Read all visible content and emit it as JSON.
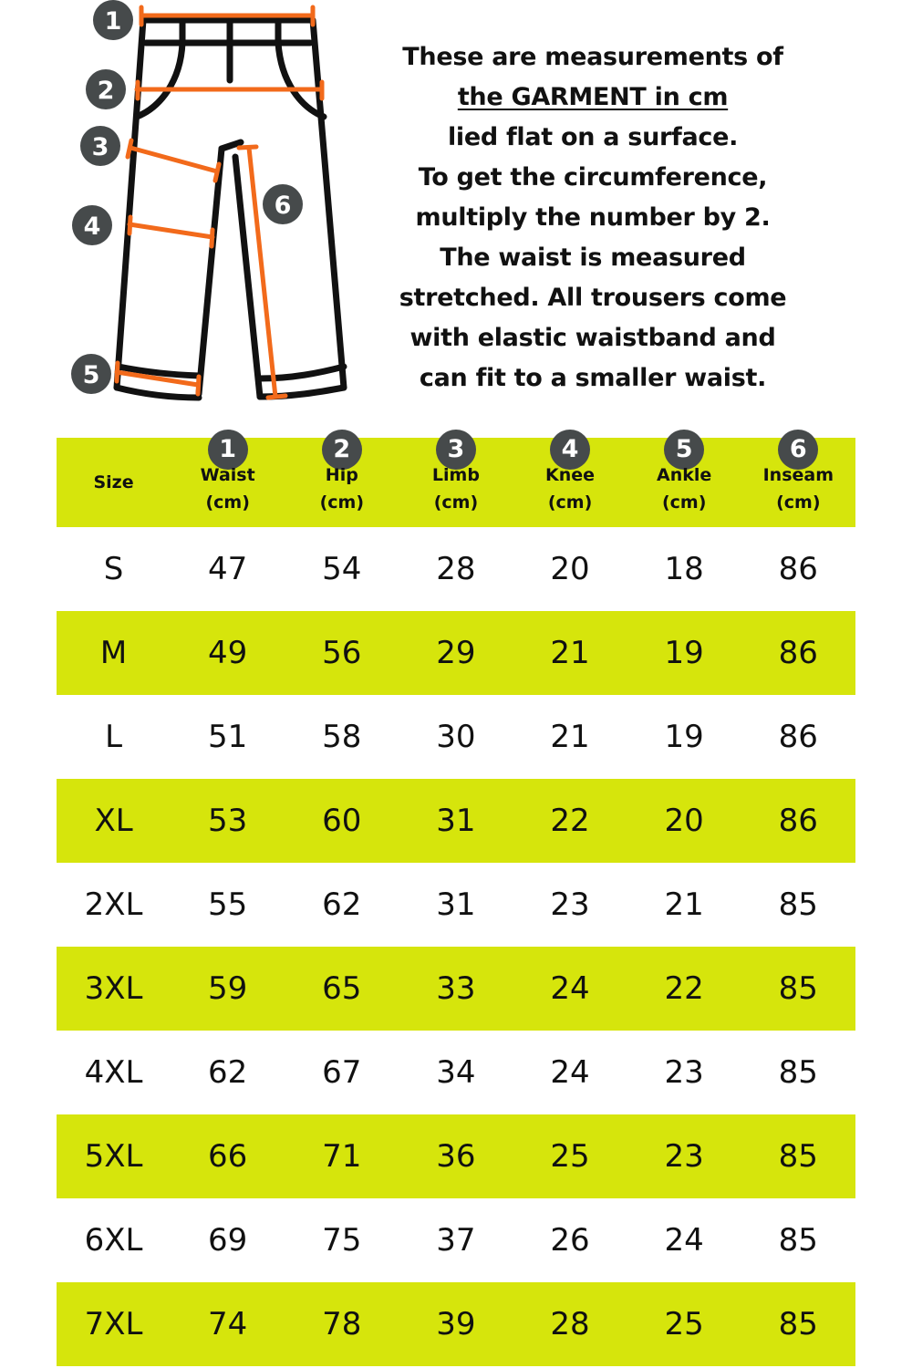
{
  "colors": {
    "accent": "#d6e50c",
    "badge": "#464a4b",
    "measure_line": "#f26a1b",
    "outline": "#111111"
  },
  "diagram": {
    "badges": [
      "1",
      "2",
      "3",
      "4",
      "5",
      "6"
    ]
  },
  "note": {
    "lines": [
      "These are measurements of",
      "the GARMENT in cm",
      "lied flat on a surface.",
      "To get the circumference,",
      "multiply the number by 2.",
      "The waist is measured",
      "stretched. All trousers come",
      "with elastic waistband and",
      "can fit to a smaller waist."
    ]
  },
  "table": {
    "headers": [
      {
        "badge": "",
        "label": "Size",
        "unit": ""
      },
      {
        "badge": "1",
        "label": "Waist",
        "unit": "(cm)"
      },
      {
        "badge": "2",
        "label": "Hip",
        "unit": "(cm)"
      },
      {
        "badge": "3",
        "label": "Limb",
        "unit": "(cm)"
      },
      {
        "badge": "4",
        "label": "Knee",
        "unit": "(cm)"
      },
      {
        "badge": "5",
        "label": "Ankle",
        "unit": "(cm)"
      },
      {
        "badge": "6",
        "label": "Inseam",
        "unit": "(cm)"
      }
    ],
    "rows": [
      [
        "S",
        "47",
        "54",
        "28",
        "20",
        "18",
        "86"
      ],
      [
        "M",
        "49",
        "56",
        "29",
        "21",
        "19",
        "86"
      ],
      [
        "L",
        "51",
        "58",
        "30",
        "21",
        "19",
        "86"
      ],
      [
        "XL",
        "53",
        "60",
        "31",
        "22",
        "20",
        "86"
      ],
      [
        "2XL",
        "55",
        "62",
        "31",
        "23",
        "21",
        "85"
      ],
      [
        "3XL",
        "59",
        "65",
        "33",
        "24",
        "22",
        "85"
      ],
      [
        "4XL",
        "62",
        "67",
        "34",
        "24",
        "23",
        "85"
      ],
      [
        "5XL",
        "66",
        "71",
        "36",
        "25",
        "23",
        "85"
      ],
      [
        "6XL",
        "69",
        "75",
        "37",
        "26",
        "24",
        "85"
      ],
      [
        "7XL",
        "74",
        "78",
        "39",
        "28",
        "25",
        "85"
      ]
    ]
  }
}
